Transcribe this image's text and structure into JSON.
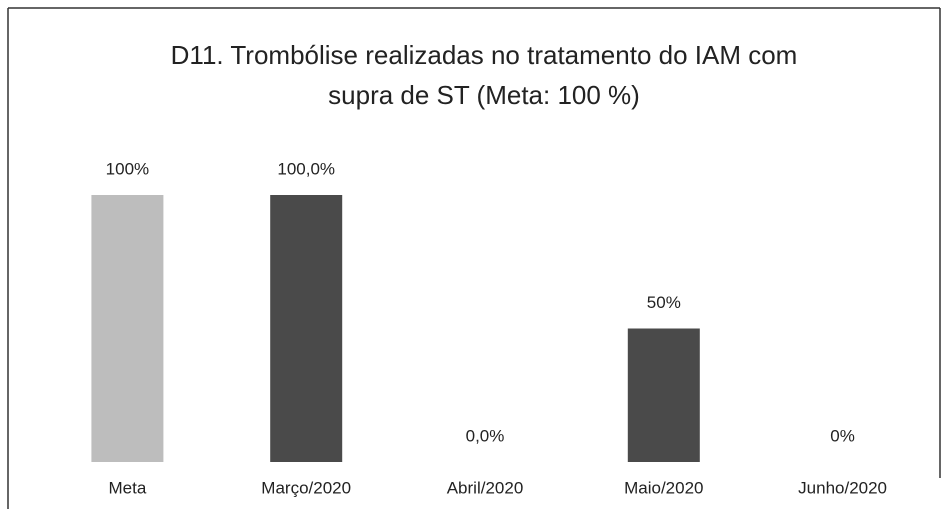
{
  "chart_data": {
    "type": "bar",
    "title": [
      "D11. Trombólise realizadas no tratamento do IAM com",
      "supra de ST (Meta:  100 %)"
    ],
    "categories": [
      "Meta",
      "Março/2020",
      "Abril/2020",
      "Maio/2020",
      "Junho/2020"
    ],
    "values": [
      100,
      100,
      0,
      50,
      0
    ],
    "value_labels": [
      "100%",
      "100,0%",
      "0,0%",
      "50%",
      "0%"
    ],
    "colors": [
      "#bdbdbd",
      "#4a4a4a",
      "#4a4a4a",
      "#4a4a4a",
      "#4a4a4a"
    ],
    "ylim": [
      0,
      100
    ]
  }
}
